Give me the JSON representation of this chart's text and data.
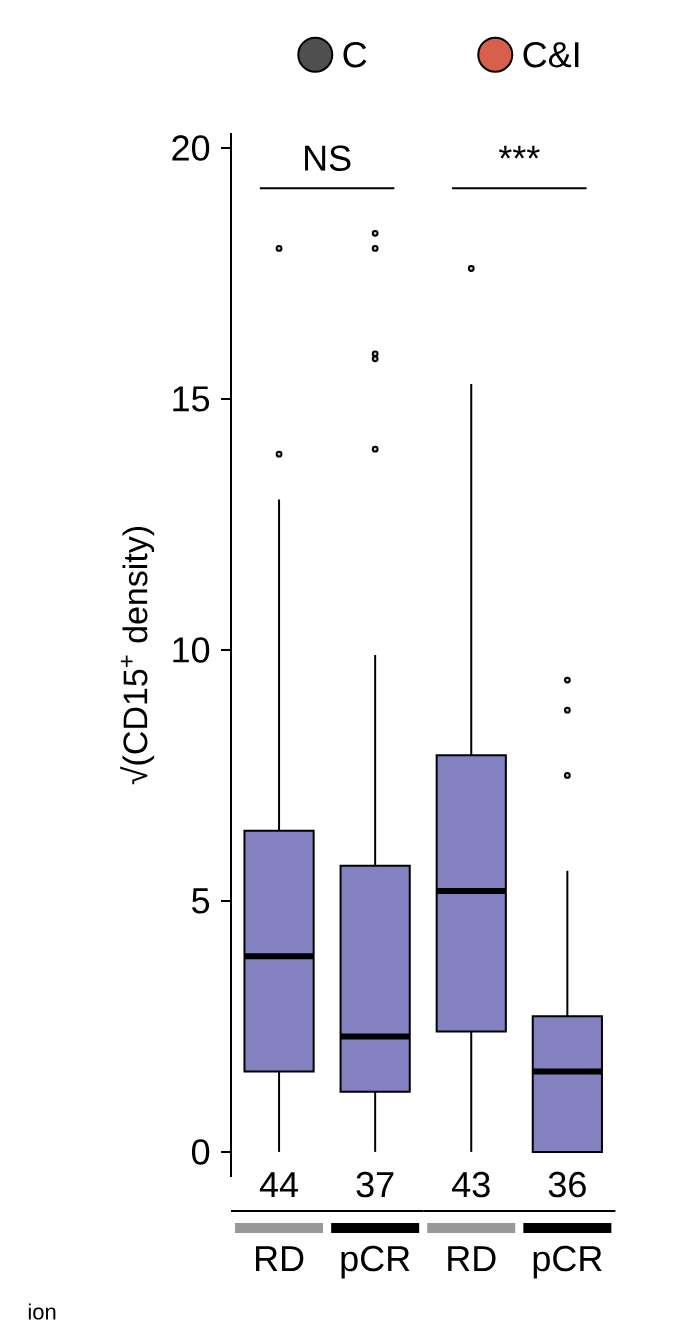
{
  "chart_data": {
    "type": "box",
    "ylabel": "√(CD15$^{+}$ density)",
    "categories": [
      "RD",
      "pCR",
      "RD",
      "pCR"
    ],
    "color": "#8481c0",
    "boxes": [
      {
        "low": 0,
        "q1": 1.6,
        "median": 3.9,
        "q3": 6.4,
        "high": 13.0,
        "outliers": [
          18.0,
          13.9
        ]
      },
      {
        "low": 0,
        "q1": 1.2,
        "median": 2.3,
        "q3": 5.7,
        "high": 9.9,
        "outliers": [
          18.3,
          18.0,
          15.9,
          15.8,
          14.0
        ]
      },
      {
        "low": 0,
        "q1": 2.4,
        "median": 5.2,
        "q3": 7.9,
        "high": 15.3,
        "outliers": [
          17.6
        ]
      },
      {
        "low": 0,
        "q1": 0,
        "median": 1.6,
        "q3": 2.7,
        "high": 5.6,
        "outliers": [
          9.4,
          8.8,
          7.5
        ]
      }
    ],
    "ylim": [
      -0.5,
      20.3
    ],
    "yticks": [
      0,
      5,
      10,
      15,
      20
    ],
    "annotations": [
      "C",
      "C&I",
      "NS",
      "***",
      "44",
      "37",
      "43",
      "36",
      "ion"
    ]
  }
}
